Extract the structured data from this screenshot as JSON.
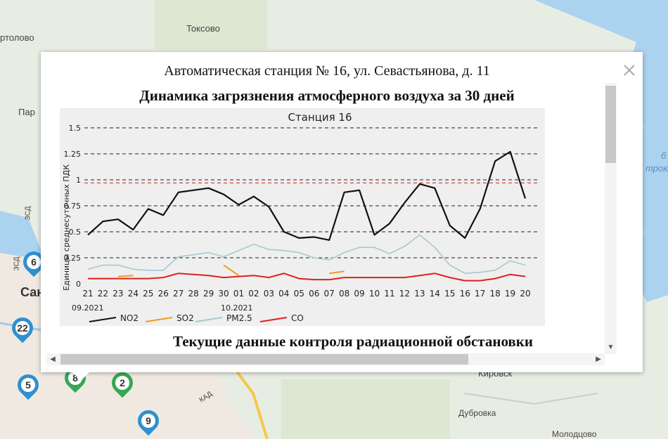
{
  "map": {
    "labels": [
      "Токсово",
      "ртолово",
      "Пар",
      "Сан",
      "Кировск",
      "Дубровка",
      "Молодцово",
      "ЗСД",
      "ЗСД",
      "КАД",
      "б",
      "трою"
    ],
    "markers": [
      {
        "label": "6",
        "color": "#2f8fd0"
      },
      {
        "label": "22",
        "color": "#2f8fd0"
      },
      {
        "label": "5",
        "color": "#2f8fd0"
      },
      {
        "label": "8",
        "color": "#34a853"
      },
      {
        "label": "2",
        "color": "#34a853"
      },
      {
        "label": "9",
        "color": "#2f8fd0"
      }
    ]
  },
  "popup": {
    "station_title": "Автоматическая станция № 16, ул. Севастьянова, д. 11",
    "chart_heading": "Динамика загрязнения атмосферного воздуха за 30 дней",
    "radiation_heading": "Текущие данные контроля радиационной обстановки",
    "close_icon": "close-icon"
  },
  "chart_data": {
    "type": "line",
    "title": "Станция 16",
    "ylabel": "Единицы среднесуточных ПДК",
    "ylim": [
      0,
      1.5
    ],
    "yticks": [
      "0",
      "0.25",
      "0.5",
      "0.75",
      "1",
      "1.25",
      "1.5"
    ],
    "x": [
      "21",
      "22",
      "23",
      "24",
      "25",
      "26",
      "27",
      "28",
      "29",
      "30",
      "01",
      "02",
      "03",
      "04",
      "05",
      "06",
      "07",
      "08",
      "09",
      "10",
      "11",
      "12",
      "13",
      "14",
      "15",
      "16",
      "17",
      "18",
      "19",
      "20"
    ],
    "x_month_labels": [
      "09.2021",
      "10.2021"
    ],
    "grid": "dashed",
    "reference_line": {
      "y": 0.97,
      "color": "#e05050"
    },
    "series": [
      {
        "name": "NO2",
        "color": "#111111",
        "values": [
          0.47,
          0.6,
          0.62,
          0.52,
          0.72,
          0.66,
          0.88,
          0.9,
          0.92,
          0.86,
          0.76,
          0.84,
          0.74,
          0.5,
          0.44,
          0.45,
          0.42,
          0.88,
          0.9,
          0.47,
          0.58,
          0.78,
          0.96,
          0.92,
          0.56,
          0.44,
          0.72,
          1.18,
          1.27,
          0.82
        ]
      },
      {
        "name": "SO2",
        "color": "#e8a020",
        "values": [
          null,
          null,
          0.07,
          0.08,
          null,
          null,
          null,
          null,
          null,
          0.18,
          0.08,
          null,
          null,
          null,
          null,
          null,
          0.1,
          0.12,
          null,
          null,
          null,
          null,
          null,
          null,
          null,
          null,
          null,
          null,
          null,
          null
        ]
      },
      {
        "name": "PM2.5",
        "color": "#a8c8d0",
        "values": [
          0.14,
          0.18,
          0.18,
          0.14,
          0.13,
          0.13,
          0.26,
          0.28,
          0.3,
          0.26,
          0.32,
          0.38,
          0.33,
          0.32,
          0.3,
          0.25,
          0.23,
          0.3,
          0.35,
          0.35,
          0.29,
          0.36,
          0.47,
          0.35,
          0.18,
          0.1,
          0.11,
          0.13,
          0.22,
          0.18
        ]
      },
      {
        "name": "CO",
        "color": "#dd2020",
        "values": [
          0.05,
          0.05,
          0.05,
          0.05,
          0.05,
          0.06,
          0.1,
          0.09,
          0.08,
          0.06,
          0.07,
          0.08,
          0.06,
          0.1,
          0.05,
          0.04,
          0.04,
          0.06,
          0.06,
          0.06,
          0.06,
          0.06,
          0.08,
          0.1,
          0.06,
          0.03,
          0.03,
          0.05,
          0.09,
          0.07
        ]
      }
    ]
  }
}
